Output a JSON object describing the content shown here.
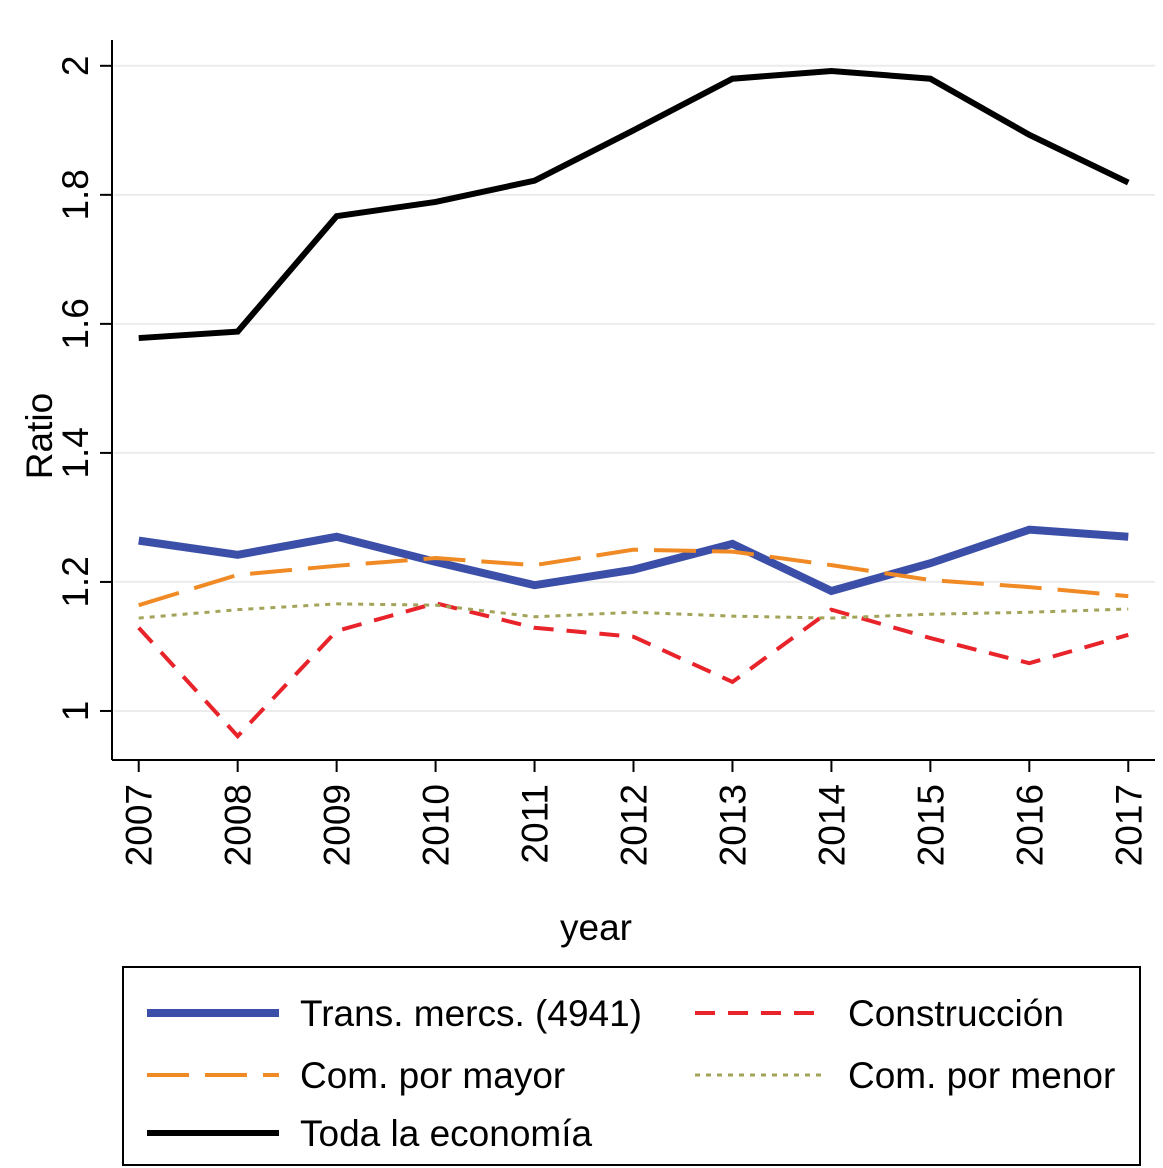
{
  "chart_data": {
    "type": "line",
    "x": [
      2007,
      2008,
      2009,
      2010,
      2011,
      2012,
      2013,
      2014,
      2015,
      2016,
      2017
    ],
    "xlim": [
      2006.73,
      2017.27
    ],
    "xticks": [
      2007,
      2008,
      2009,
      2010,
      2011,
      2012,
      2013,
      2014,
      2015,
      2016,
      2017
    ],
    "ylim": [
      0.924,
      2.04
    ],
    "yticks": [
      1,
      1.2,
      1.4,
      1.6,
      1.8,
      2
    ],
    "grid": true,
    "x_label": "year",
    "y_label": "Ratio",
    "legend": "bottom",
    "series": [
      {
        "name": "Trans. mercs. (4941)",
        "color": "#3c4fa8",
        "line_style": "solid",
        "values": [
          1.264,
          1.242,
          1.27,
          1.231,
          1.195,
          1.219,
          1.259,
          1.186,
          1.229,
          1.281,
          1.27
        ]
      },
      {
        "name": "Construcción",
        "color": "#e8232a",
        "line_style": "dashed",
        "values": [
          1.129,
          0.961,
          1.124,
          1.167,
          1.129,
          1.115,
          1.045,
          1.157,
          1.113,
          1.074,
          1.118
        ]
      },
      {
        "name": "Com. por mayor",
        "color": "#f08a24",
        "line_style": "longdash",
        "values": [
          1.164,
          1.211,
          1.225,
          1.237,
          1.226,
          1.25,
          1.247,
          1.226,
          1.203,
          1.192,
          1.178
        ]
      },
      {
        "name": "Com. por menor",
        "color": "#a3a35a",
        "line_style": "dotted",
        "values": [
          1.144,
          1.157,
          1.166,
          1.164,
          1.146,
          1.153,
          1.147,
          1.144,
          1.15,
          1.153,
          1.158
        ]
      },
      {
        "name": "Toda la economía",
        "color": "#000000",
        "line_style": "solid",
        "values": [
          1.578,
          1.588,
          1.767,
          1.789,
          1.822,
          1.9,
          1.98,
          1.992,
          1.98,
          1.893,
          1.819
        ]
      }
    ]
  }
}
